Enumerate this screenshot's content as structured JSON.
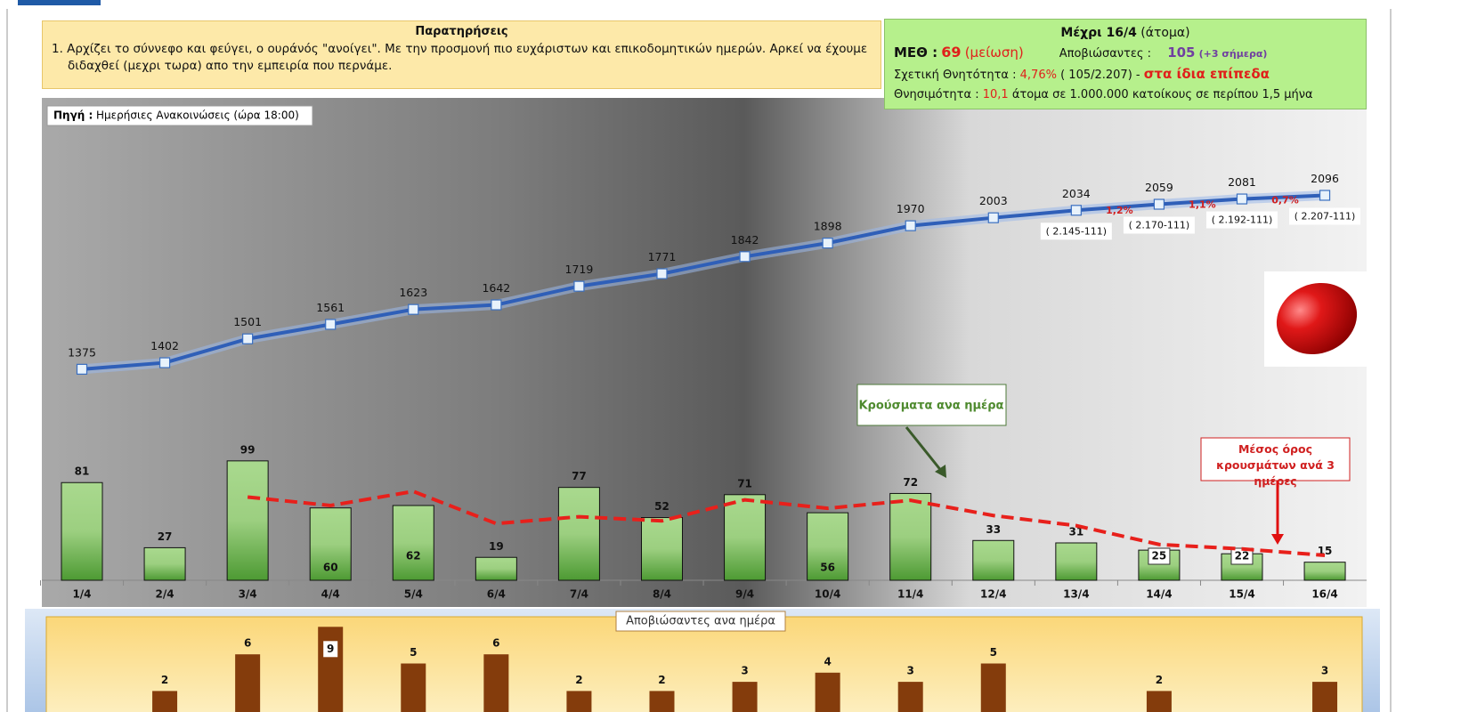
{
  "notes": {
    "title": "Παρατηρήσεις",
    "text": "1. Αρχίζει το σύννεφο και φεύγει, ο ουράνός \"ανοίγει\". Με την προσμονή πιο ευχάριστων και επικοδομητικών ημερών. Αρκεί να έχουμε διδαχθεί (μεχρι τωρα) απο την εμπειρία που περνάμε."
  },
  "stats": {
    "title": "Μέχρι 16/4",
    "title_unit": "(άτομα)",
    "icu_label": "ΜΕΘ :",
    "icu_value": "69",
    "icu_note": "(μείωση)",
    "deaths_label": "Αποβιώσαντες :",
    "deaths_value": "105",
    "deaths_note": "(+3 σήμερα)",
    "cfr_label": "Σχετική Θνητότητα :",
    "cfr_value": "4,76%",
    "cfr_calc": "( 105/2.207) -",
    "cfr_note": "στα ίδια επίπεδα",
    "mortality_label": "Θνησιμότητα :",
    "mortality_value": "10,1",
    "mortality_text": "άτομα σε 1.000.000 κατοίκους σε περίπου 1,5 μήνα"
  },
  "chart_data": [
    {
      "type": "line",
      "color": "#2f5fb8",
      "ylim": [
        500,
        2500
      ],
      "source": {
        "label": "Πηγή :",
        "text": "Ημερήσιες Ανακοινώσεις (ώρα 18:00)"
      },
      "values": [
        1375,
        1402,
        1501,
        1561,
        1623,
        1642,
        1719,
        1771,
        1842,
        1898,
        1970,
        2003,
        2034,
        2059,
        2081,
        2096
      ],
      "change_labels": [
        null,
        null,
        null,
        null,
        null,
        null,
        null,
        null,
        null,
        null,
        null,
        null,
        null,
        "1,2%",
        "1,1%",
        "0,7%"
      ],
      "note_labels": [
        null,
        null,
        null,
        null,
        null,
        null,
        null,
        null,
        null,
        null,
        null,
        null,
        "( 2.145-111)",
        "( 2.170-111)",
        "( 2.192-111)",
        "( 2.207-111)"
      ]
    },
    {
      "type": "bar",
      "ylim": [
        0,
        400
      ],
      "categories": [
        "1/4",
        "2/4",
        "3/4",
        "4/4",
        "5/4",
        "6/4",
        "7/4",
        "8/4",
        "9/4",
        "10/4",
        "11/4",
        "12/4",
        "13/4",
        "14/4",
        "15/4",
        "16/4"
      ],
      "series": [
        {
          "name": "Κρούσματα ανα ημέρα",
          "type": "bar",
          "color": "#6cb050",
          "values": [
            81,
            27,
            99,
            60,
            62,
            19,
            77,
            52,
            71,
            56,
            72,
            33,
            31,
            25,
            22,
            15
          ]
        },
        {
          "name": "Μέσος όρος κρουσμάτων ανά 3 ημέρες",
          "type": "line",
          "color": "#e8201b",
          "values": [
            null,
            null,
            69,
            62,
            73.7,
            47,
            52.7,
            49.3,
            66.7,
            59.7,
            66.3,
            53.7,
            45.3,
            29.7,
            26,
            20.7
          ]
        }
      ]
    },
    {
      "type": "bar",
      "title": "Αποβιώσαντες ανα ημέρα",
      "color": "#843c0c",
      "ylim": [
        0,
        10
      ],
      "values": [
        null,
        2,
        6,
        9,
        5,
        6,
        2,
        2,
        3,
        4,
        3,
        5,
        null,
        2,
        null,
        3
      ]
    }
  ]
}
